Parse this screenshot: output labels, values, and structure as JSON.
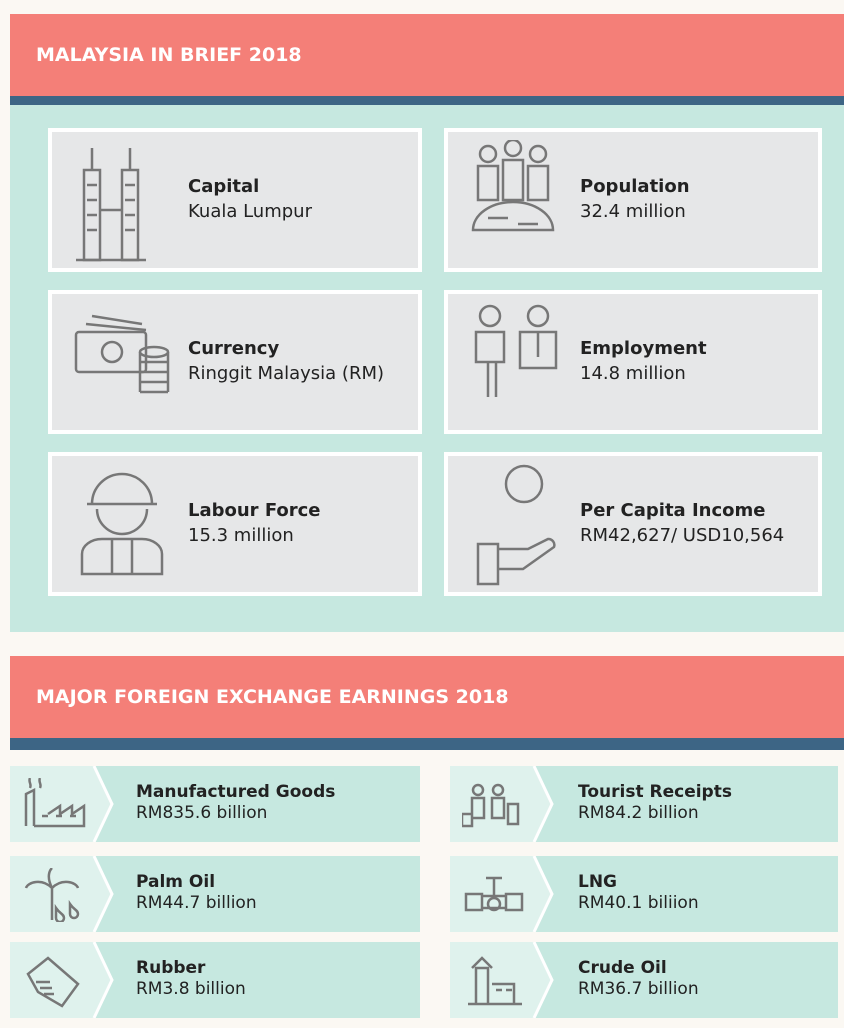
{
  "brief": {
    "title": "MALAYSIA IN BRIEF 2018",
    "items": [
      {
        "label": "Capital",
        "value": "Kuala Lumpur"
      },
      {
        "label": "Population",
        "value": "32.4 million"
      },
      {
        "label": "Currency",
        "value": "Ringgit Malaysia (RM)"
      },
      {
        "label": "Employment",
        "value": "14.8 million"
      },
      {
        "label": "Labour Force",
        "value": "15.3 million"
      },
      {
        "label": "Per Capita Income",
        "value": "RM42,627/ USD10,564"
      }
    ]
  },
  "earnings": {
    "title": "MAJOR FOREIGN EXCHANGE EARNINGS 2018",
    "items": [
      {
        "label": "Manufactured Goods",
        "value": "RM835.6 billion"
      },
      {
        "label": "Tourist Receipts",
        "value": "RM84.2 billion"
      },
      {
        "label": "Palm Oil",
        "value": "RM44.7 billion"
      },
      {
        "label": "LNG",
        "value": "RM40.1 biliion"
      },
      {
        "label": "Rubber",
        "value": "RM3.8 billion"
      },
      {
        "label": "Crude Oil",
        "value": "RM36.7 billion"
      }
    ]
  }
}
